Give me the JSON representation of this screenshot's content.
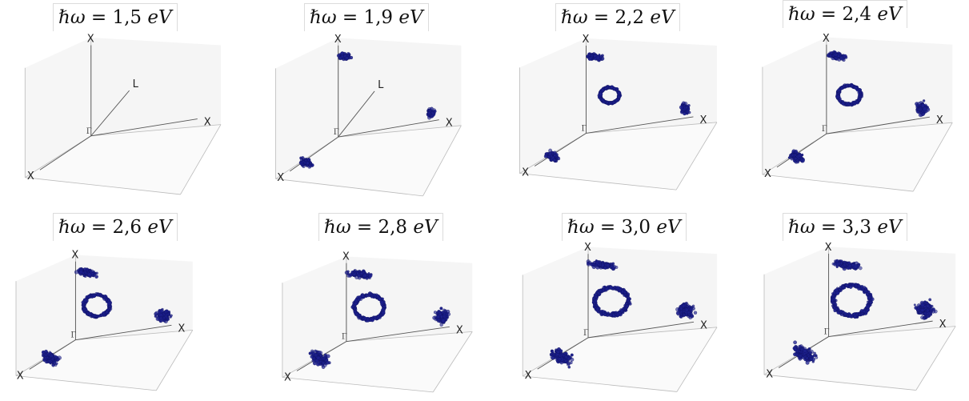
{
  "figure": {
    "panels": [
      {
        "title": "ℏω = 1,5 eV",
        "prefix": "ℏω",
        "value": "1,5",
        "unit": "eV"
      },
      {
        "title": "ℏω = 1,9 eV",
        "prefix": "ℏω",
        "value": "1,9",
        "unit": "eV"
      },
      {
        "title": "ℏω = 2,2 eV",
        "prefix": "ℏω",
        "value": "2,2",
        "unit": "eV"
      },
      {
        "title": "ℏω = 2,4 eV",
        "prefix": "ℏω",
        "value": "2,4",
        "unit": "eV"
      },
      {
        "title": "ℏω = 2,6 eV",
        "prefix": "ℏω",
        "value": "2,6",
        "unit": "eV"
      },
      {
        "title": "ℏω = 2,8 eV",
        "prefix": "ℏω",
        "value": "2,8",
        "unit": "eV"
      },
      {
        "title": "ℏω = 3,0 eV",
        "prefix": "ℏω",
        "value": "3,0",
        "unit": "eV"
      },
      {
        "title": "ℏω = 3,3 eV",
        "prefix": "ℏω",
        "value": "3,3",
        "unit": "eV"
      }
    ],
    "axis_labels": {
      "x": "X",
      "l": "L",
      "gamma": "Γ"
    },
    "colors": {
      "point": "#1c1f8c",
      "point_edge": "#0d0f5c",
      "pane": "#ececec",
      "axis": "#555555"
    }
  }
}
